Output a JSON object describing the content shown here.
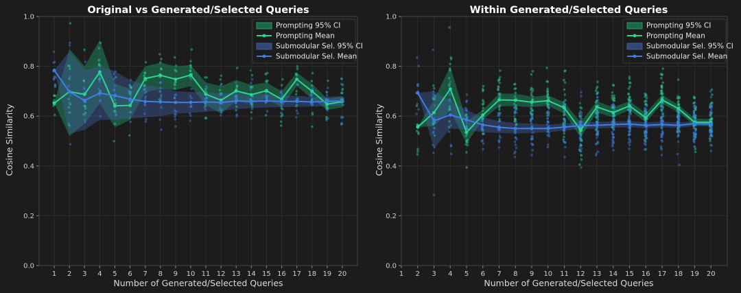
{
  "colors": {
    "background": "#1c1c1c",
    "axes_bg": "#1c1c1c",
    "spine": "#44445a",
    "grid": "#303030",
    "prompting": "#2bd492",
    "prompting_ci": "#1f9a66",
    "submodular": "#3e7fe6",
    "submodular_ci": "#3d5a9c"
  },
  "chart_data": [
    {
      "type": "line",
      "title": "Original vs Generated/Selected Queries",
      "xlabel": "Number of Generated/Selected Queries",
      "ylabel": "Cosine Similarity",
      "xlim": [
        0,
        21
      ],
      "ylim": [
        0.0,
        1.0
      ],
      "x_ticks": [
        "1",
        "2",
        "3",
        "4",
        "5",
        "6",
        "7",
        "8",
        "9",
        "10",
        "11",
        "12",
        "13",
        "14",
        "15",
        "16",
        "17",
        "18",
        "19",
        "20"
      ],
      "y_ticks": [
        "0.0",
        "0.2",
        "0.4",
        "0.6",
        "0.8",
        "1.0"
      ],
      "grid": true,
      "legend_position": "top-right",
      "legend": [
        "Prompting 95% CI",
        "Prompting Mean",
        "Submodular Sel. 95% CI",
        "Submodular Sel. Mean"
      ],
      "series": [
        {
          "name": "Prompting Mean",
          "x": [
            1,
            2,
            3,
            4,
            5,
            6,
            7,
            8,
            9,
            10,
            11,
            12,
            13,
            14,
            15,
            16,
            17,
            18,
            19,
            20
          ],
          "values": [
            0.652,
            0.698,
            0.687,
            0.777,
            0.641,
            0.643,
            0.751,
            0.764,
            0.748,
            0.765,
            0.688,
            0.664,
            0.701,
            0.686,
            0.702,
            0.667,
            0.748,
            0.7,
            0.648,
            0.658
          ],
          "ci_lower": [
            0.652,
            0.52,
            0.57,
            0.65,
            0.555,
            0.585,
            0.695,
            0.71,
            0.705,
            0.72,
            0.645,
            0.61,
            0.66,
            0.65,
            0.67,
            0.635,
            0.72,
            0.67,
            0.625,
            0.635
          ],
          "ci_upper": [
            0.652,
            0.87,
            0.8,
            0.905,
            0.73,
            0.71,
            0.8,
            0.815,
            0.8,
            0.805,
            0.735,
            0.72,
            0.745,
            0.725,
            0.735,
            0.7,
            0.775,
            0.73,
            0.67,
            0.68
          ]
        },
        {
          "name": "Submodular Sel. Mean",
          "x": [
            1,
            2,
            3,
            4,
            5,
            6,
            7,
            8,
            9,
            10,
            11,
            12,
            13,
            14,
            15,
            16,
            17,
            18,
            19,
            20
          ],
          "values": [
            0.784,
            0.697,
            0.663,
            0.692,
            0.682,
            0.668,
            0.659,
            0.657,
            0.655,
            0.655,
            0.657,
            0.655,
            0.661,
            0.659,
            0.661,
            0.659,
            0.659,
            0.657,
            0.659,
            0.661
          ],
          "ci_lower": [
            0.784,
            0.53,
            0.545,
            0.585,
            0.585,
            0.59,
            0.595,
            0.6,
            0.61,
            0.613,
            0.618,
            0.622,
            0.628,
            0.632,
            0.635,
            0.636,
            0.637,
            0.638,
            0.64,
            0.643
          ],
          "ci_upper": [
            0.784,
            0.86,
            0.785,
            0.8,
            0.78,
            0.745,
            0.725,
            0.715,
            0.7,
            0.697,
            0.695,
            0.69,
            0.693,
            0.688,
            0.688,
            0.683,
            0.681,
            0.677,
            0.678,
            0.68
          ]
        }
      ]
    },
    {
      "type": "line",
      "title": "Within Generated/Selected Queries",
      "xlabel": "Number of Generated/Selected Queries",
      "ylabel": "Cosine Similarity",
      "xlim": [
        1,
        21
      ],
      "ylim": [
        0.0,
        1.0
      ],
      "x_ticks": [
        "1",
        "2",
        "3",
        "4",
        "5",
        "6",
        "7",
        "8",
        "9",
        "10",
        "11",
        "12",
        "13",
        "14",
        "15",
        "16",
        "17",
        "18",
        "19",
        "20"
      ],
      "y_ticks": [
        "0.0",
        "0.2",
        "0.4",
        "0.6",
        "0.8",
        "1.0"
      ],
      "grid": true,
      "legend_position": "top-right",
      "legend": [
        "Prompting 95% CI",
        "Prompting Mean",
        "Submodular Sel. 95% CI",
        "Submodular Sel. Mean"
      ],
      "series": [
        {
          "name": "Prompting Mean",
          "x": [
            2,
            3,
            4,
            5,
            6,
            7,
            8,
            9,
            10,
            11,
            12,
            13,
            14,
            15,
            16,
            17,
            18,
            19,
            20
          ],
          "values": [
            0.556,
            0.614,
            0.709,
            0.535,
            0.604,
            0.665,
            0.664,
            0.656,
            0.662,
            0.633,
            0.544,
            0.637,
            0.614,
            0.641,
            0.593,
            0.665,
            0.63,
            0.575,
            0.575
          ],
          "ci_lower": [
            0.556,
            0.56,
            0.62,
            0.49,
            0.585,
            0.64,
            0.64,
            0.636,
            0.642,
            0.61,
            0.515,
            0.615,
            0.595,
            0.625,
            0.575,
            0.65,
            0.615,
            0.562,
            0.562
          ],
          "ci_upper": [
            0.556,
            0.665,
            0.8,
            0.58,
            0.625,
            0.69,
            0.69,
            0.678,
            0.684,
            0.655,
            0.575,
            0.66,
            0.635,
            0.66,
            0.612,
            0.685,
            0.645,
            0.59,
            0.588
          ]
        },
        {
          "name": "Submodular Sel. Mean",
          "x": [
            2,
            3,
            4,
            5,
            6,
            7,
            8,
            9,
            10,
            11,
            12,
            13,
            14,
            15,
            16,
            17,
            18,
            19,
            20
          ],
          "values": [
            0.693,
            0.581,
            0.605,
            0.585,
            0.565,
            0.555,
            0.55,
            0.55,
            0.55,
            0.556,
            0.562,
            0.563,
            0.566,
            0.568,
            0.563,
            0.566,
            0.563,
            0.57,
            0.569
          ],
          "ci_lower": [
            0.693,
            0.47,
            0.55,
            0.545,
            0.535,
            0.532,
            0.53,
            0.532,
            0.535,
            0.542,
            0.548,
            0.55,
            0.553,
            0.556,
            0.552,
            0.555,
            0.553,
            0.56,
            0.56
          ],
          "ci_upper": [
            0.693,
            0.7,
            0.66,
            0.625,
            0.595,
            0.58,
            0.572,
            0.57,
            0.566,
            0.57,
            0.576,
            0.577,
            0.579,
            0.58,
            0.575,
            0.578,
            0.574,
            0.58,
            0.579
          ]
        }
      ]
    }
  ]
}
